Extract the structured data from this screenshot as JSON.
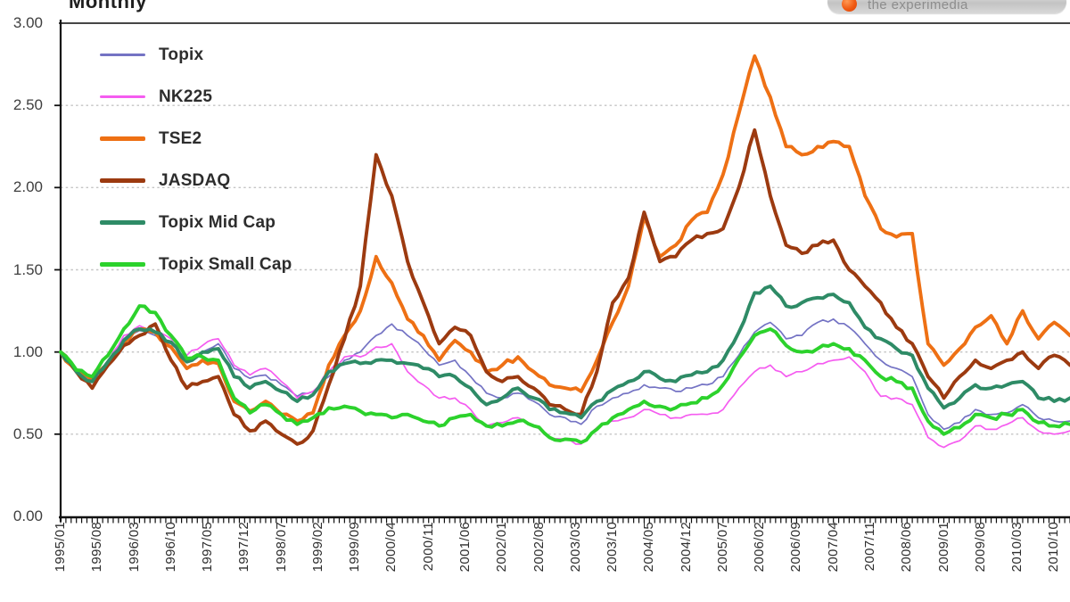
{
  "watermark": {
    "text": "the experimedia",
    "icon": "orange-dot-logo"
  },
  "chart_data": {
    "type": "line",
    "title": "Monthly",
    "subtitle": "",
    "xlabel": "",
    "ylabel": "",
    "ylim": [
      0,
      3
    ],
    "y_ticks": [
      "0.00",
      "0.50",
      "1.00",
      "1.50",
      "2.00",
      "2.50",
      "3.00"
    ],
    "grid": "horizontal dashed gridlines at 0.50 intervals, monthly tick comb on x-axis",
    "legend_position": "top-left inside plot area",
    "x_tick_labels": [
      "1995/01",
      "1995/08",
      "1996/03",
      "1996/10",
      "1997/05",
      "1997/12",
      "1998/07",
      "1999/02",
      "1999/09",
      "2000/04",
      "2000/11",
      "2001/06",
      "2002/01",
      "2002/08",
      "2003/03",
      "2003/10",
      "2004/05",
      "2004/12",
      "2005/07",
      "2006/02",
      "2006/09",
      "2007/04",
      "2007/11",
      "2008/06",
      "2009/01",
      "2009/08",
      "2010/03",
      "2010/10"
    ],
    "x_tick_step_months": 7,
    "x_samples": {
      "start": "1995/01",
      "step_months": 3,
      "count": 65,
      "end": "2011/01"
    },
    "series": [
      {
        "name": "Topix",
        "color": "#7473c4",
        "line_weight": "thin",
        "values": [
          1.0,
          0.88,
          0.82,
          0.93,
          1.08,
          1.13,
          1.1,
          1.05,
          0.95,
          1.0,
          1.05,
          0.9,
          0.84,
          0.86,
          0.8,
          0.73,
          0.76,
          0.85,
          0.95,
          1.0,
          1.1,
          1.17,
          1.1,
          1.02,
          0.92,
          0.95,
          0.85,
          0.75,
          0.72,
          0.75,
          0.7,
          0.62,
          0.6,
          0.56,
          0.67,
          0.72,
          0.75,
          0.8,
          0.78,
          0.76,
          0.78,
          0.8,
          0.85,
          0.98,
          1.12,
          1.18,
          1.08,
          1.1,
          1.18,
          1.2,
          1.15,
          1.05,
          0.95,
          0.9,
          0.85,
          0.62,
          0.53,
          0.57,
          0.65,
          0.62,
          0.63,
          0.68,
          0.6,
          0.58,
          0.58
        ]
      },
      {
        "name": "NK225",
        "color": "#f55cf0",
        "line_weight": "thin",
        "values": [
          1.0,
          0.88,
          0.83,
          0.94,
          1.1,
          1.16,
          1.12,
          1.08,
          0.98,
          1.04,
          1.08,
          0.92,
          0.86,
          0.9,
          0.82,
          0.72,
          0.76,
          0.88,
          0.97,
          0.97,
          1.03,
          1.05,
          0.88,
          0.8,
          0.72,
          0.72,
          0.65,
          0.55,
          0.57,
          0.6,
          0.55,
          0.48,
          0.47,
          0.44,
          0.54,
          0.58,
          0.6,
          0.65,
          0.62,
          0.6,
          0.62,
          0.62,
          0.65,
          0.78,
          0.88,
          0.92,
          0.85,
          0.88,
          0.93,
          0.95,
          0.97,
          0.88,
          0.73,
          0.72,
          0.68,
          0.48,
          0.42,
          0.46,
          0.55,
          0.53,
          0.56,
          0.6,
          0.52,
          0.5,
          0.52
        ]
      },
      {
        "name": "TSE2",
        "color": "#ee7014",
        "line_weight": "thick",
        "values": [
          1.0,
          0.88,
          0.83,
          0.93,
          1.06,
          1.14,
          1.12,
          1.03,
          0.9,
          0.95,
          0.93,
          0.7,
          0.64,
          0.7,
          0.62,
          0.58,
          0.63,
          0.92,
          1.1,
          1.25,
          1.58,
          1.42,
          1.2,
          1.1,
          0.95,
          1.07,
          1.0,
          0.88,
          0.92,
          0.97,
          0.88,
          0.8,
          0.78,
          0.76,
          0.95,
          1.18,
          1.4,
          1.82,
          1.58,
          1.65,
          1.8,
          1.85,
          2.08,
          2.45,
          2.8,
          2.55,
          2.25,
          2.2,
          2.25,
          2.28,
          2.25,
          1.95,
          1.75,
          1.7,
          1.72,
          1.05,
          0.92,
          1.02,
          1.15,
          1.22,
          1.05,
          1.25,
          1.08,
          1.18,
          1.1
        ]
      },
      {
        "name": "JASDAQ",
        "color": "#9c3a10",
        "line_weight": "thick",
        "values": [
          1.0,
          0.88,
          0.78,
          0.92,
          1.04,
          1.1,
          1.17,
          0.95,
          0.78,
          0.82,
          0.85,
          0.62,
          0.52,
          0.58,
          0.5,
          0.44,
          0.52,
          0.8,
          1.08,
          1.4,
          2.2,
          1.95,
          1.55,
          1.3,
          1.05,
          1.15,
          1.1,
          0.88,
          0.82,
          0.85,
          0.78,
          0.68,
          0.65,
          0.62,
          0.88,
          1.3,
          1.45,
          1.85,
          1.55,
          1.58,
          1.68,
          1.72,
          1.75,
          2.0,
          2.35,
          1.95,
          1.65,
          1.6,
          1.65,
          1.68,
          1.5,
          1.4,
          1.3,
          1.15,
          1.05,
          0.85,
          0.72,
          0.85,
          0.95,
          0.9,
          0.95,
          1.0,
          0.9,
          0.98,
          0.92
        ]
      },
      {
        "name": "Topix Mid Cap",
        "color": "#2e8b66",
        "line_weight": "thick",
        "values": [
          1.0,
          0.88,
          0.82,
          0.94,
          1.07,
          1.14,
          1.12,
          1.06,
          0.94,
          1.0,
          1.02,
          0.85,
          0.78,
          0.82,
          0.76,
          0.7,
          0.74,
          0.88,
          0.93,
          0.93,
          0.95,
          0.95,
          0.93,
          0.9,
          0.85,
          0.85,
          0.78,
          0.68,
          0.72,
          0.78,
          0.72,
          0.65,
          0.63,
          0.6,
          0.7,
          0.77,
          0.82,
          0.88,
          0.84,
          0.82,
          0.86,
          0.88,
          0.95,
          1.12,
          1.36,
          1.4,
          1.28,
          1.3,
          1.33,
          1.35,
          1.3,
          1.15,
          1.08,
          1.02,
          0.98,
          0.78,
          0.66,
          0.72,
          0.8,
          0.78,
          0.8,
          0.82,
          0.72,
          0.7,
          0.72
        ]
      },
      {
        "name": "Topix Small Cap",
        "color": "#2cd22c",
        "line_weight": "thick",
        "values": [
          1.0,
          0.89,
          0.85,
          0.98,
          1.14,
          1.28,
          1.24,
          1.1,
          0.96,
          0.97,
          0.95,
          0.72,
          0.63,
          0.68,
          0.62,
          0.56,
          0.6,
          0.66,
          0.67,
          0.64,
          0.62,
          0.6,
          0.62,
          0.58,
          0.55,
          0.6,
          0.62,
          0.55,
          0.55,
          0.58,
          0.55,
          0.48,
          0.47,
          0.45,
          0.53,
          0.6,
          0.65,
          0.7,
          0.67,
          0.66,
          0.69,
          0.72,
          0.8,
          0.96,
          1.1,
          1.14,
          1.04,
          1.0,
          1.02,
          1.05,
          1.02,
          0.95,
          0.85,
          0.82,
          0.78,
          0.58,
          0.5,
          0.54,
          0.62,
          0.6,
          0.62,
          0.65,
          0.57,
          0.55,
          0.56
        ]
      }
    ]
  }
}
